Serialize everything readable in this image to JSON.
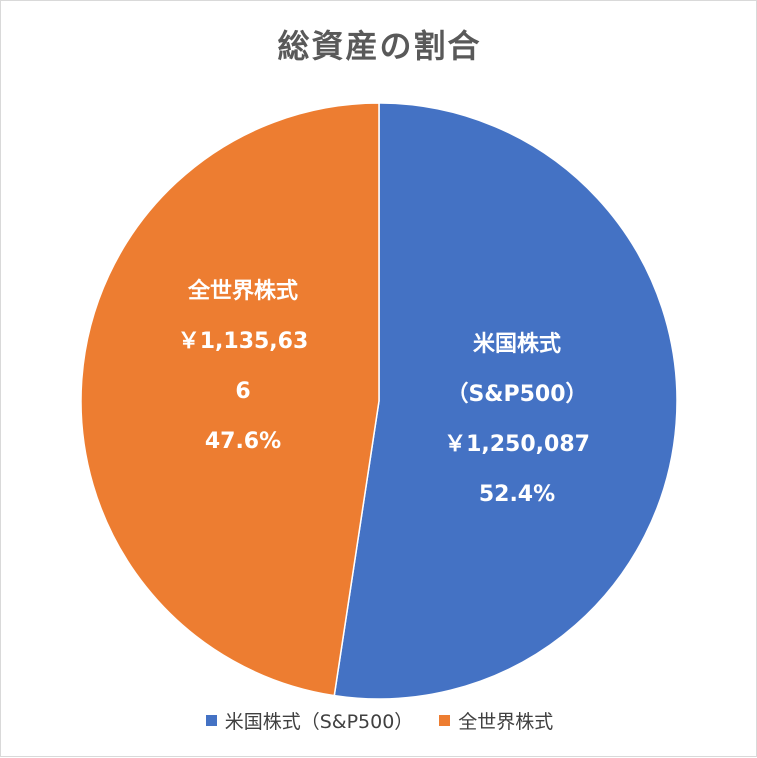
{
  "chart_data": {
    "type": "pie",
    "title": "総資産の割合",
    "slices": [
      {
        "label": "米国株式（S&P500）",
        "label_lines": [
          "米国株式",
          "（S&P500）"
        ],
        "value": 1250087,
        "value_text_lines": [
          "￥1,250,087"
        ],
        "percent": 52.4,
        "percent_text": "52.4%",
        "color": "#4472C4"
      },
      {
        "label": "全世界株式",
        "label_lines": [
          "全世界株式"
        ],
        "value": 1135636,
        "value_text_lines": [
          "￥1,135,63",
          "6"
        ],
        "percent": 47.6,
        "percent_text": "47.6%",
        "color": "#ED7D31"
      }
    ],
    "start_angle_deg": 0,
    "direction": "clockwise",
    "legend_position": "bottom"
  }
}
